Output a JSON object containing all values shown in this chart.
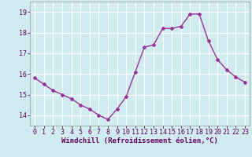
{
  "x": [
    0,
    1,
    2,
    3,
    4,
    5,
    6,
    7,
    8,
    9,
    10,
    11,
    12,
    13,
    14,
    15,
    16,
    17,
    18,
    19,
    20,
    21,
    22,
    23
  ],
  "y": [
    15.8,
    15.5,
    15.2,
    15.0,
    14.8,
    14.5,
    14.3,
    14.0,
    13.8,
    14.3,
    14.9,
    16.1,
    17.3,
    17.4,
    18.2,
    18.2,
    18.3,
    18.9,
    18.9,
    17.6,
    16.7,
    16.2,
    15.85,
    15.6
  ],
  "line_color": "#993399",
  "marker": "D",
  "marker_size": 2.0,
  "linewidth": 1.0,
  "bg_color": "#d0ecf0",
  "grid_color": "#ffffff",
  "xlabel": "Windchill (Refroidissement éolien,°C)",
  "ylim": [
    13.5,
    19.5
  ],
  "yticks": [
    14,
    15,
    16,
    17,
    18,
    19
  ],
  "xticks": [
    0,
    1,
    2,
    3,
    4,
    5,
    6,
    7,
    8,
    9,
    10,
    11,
    12,
    13,
    14,
    15,
    16,
    17,
    18,
    19,
    20,
    21,
    22,
    23
  ],
  "xlabel_fontsize": 6.5,
  "tick_fontsize": 6.0
}
